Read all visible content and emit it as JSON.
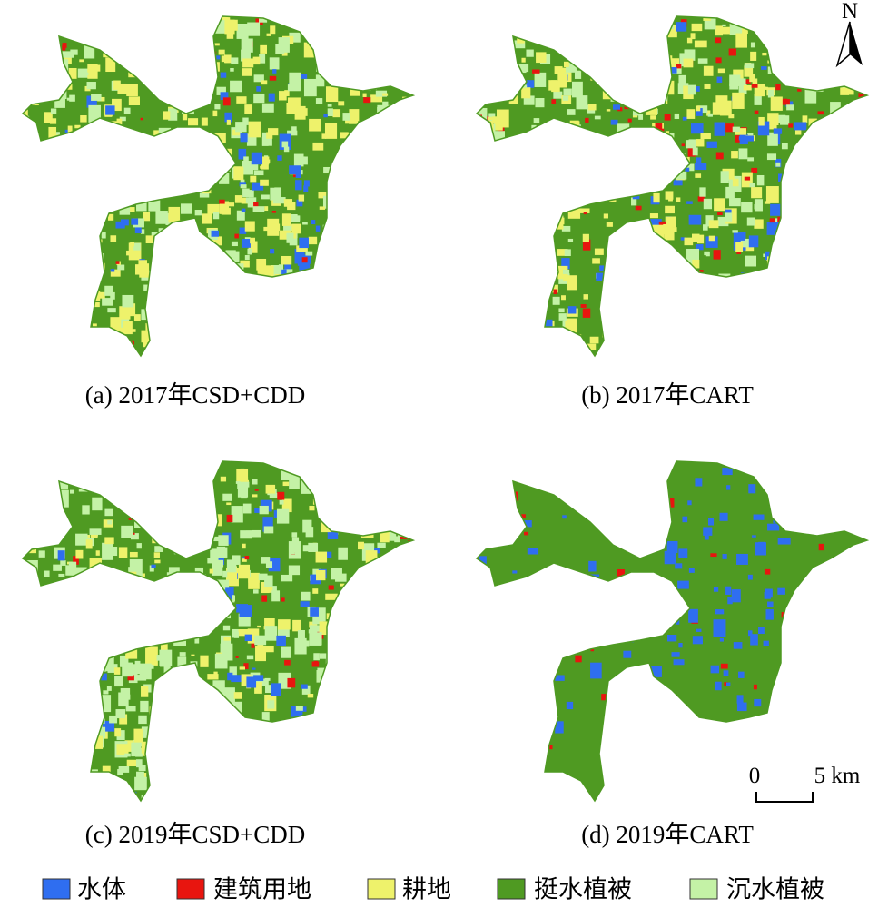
{
  "panels": [
    {
      "caption": "(a) 2017年CSD+CDD"
    },
    {
      "caption": "(b) 2017年CART"
    },
    {
      "caption": "(c) 2019年CSD+CDD"
    },
    {
      "caption": "(d) 2019年CART"
    }
  ],
  "legend": [
    {
      "label": "水体",
      "color": "#2f6ef0"
    },
    {
      "label": "建筑用地",
      "color": "#e8150f"
    },
    {
      "label": "耕地",
      "color": "#eef26b"
    },
    {
      "label": "挺水植被",
      "color": "#4f9a22"
    },
    {
      "label": "沉水植被",
      "color": "#c4f2a6"
    }
  ],
  "scale_bar": {
    "start": "0",
    "end": "5 km"
  },
  "north_arrow": {
    "label": "N"
  }
}
